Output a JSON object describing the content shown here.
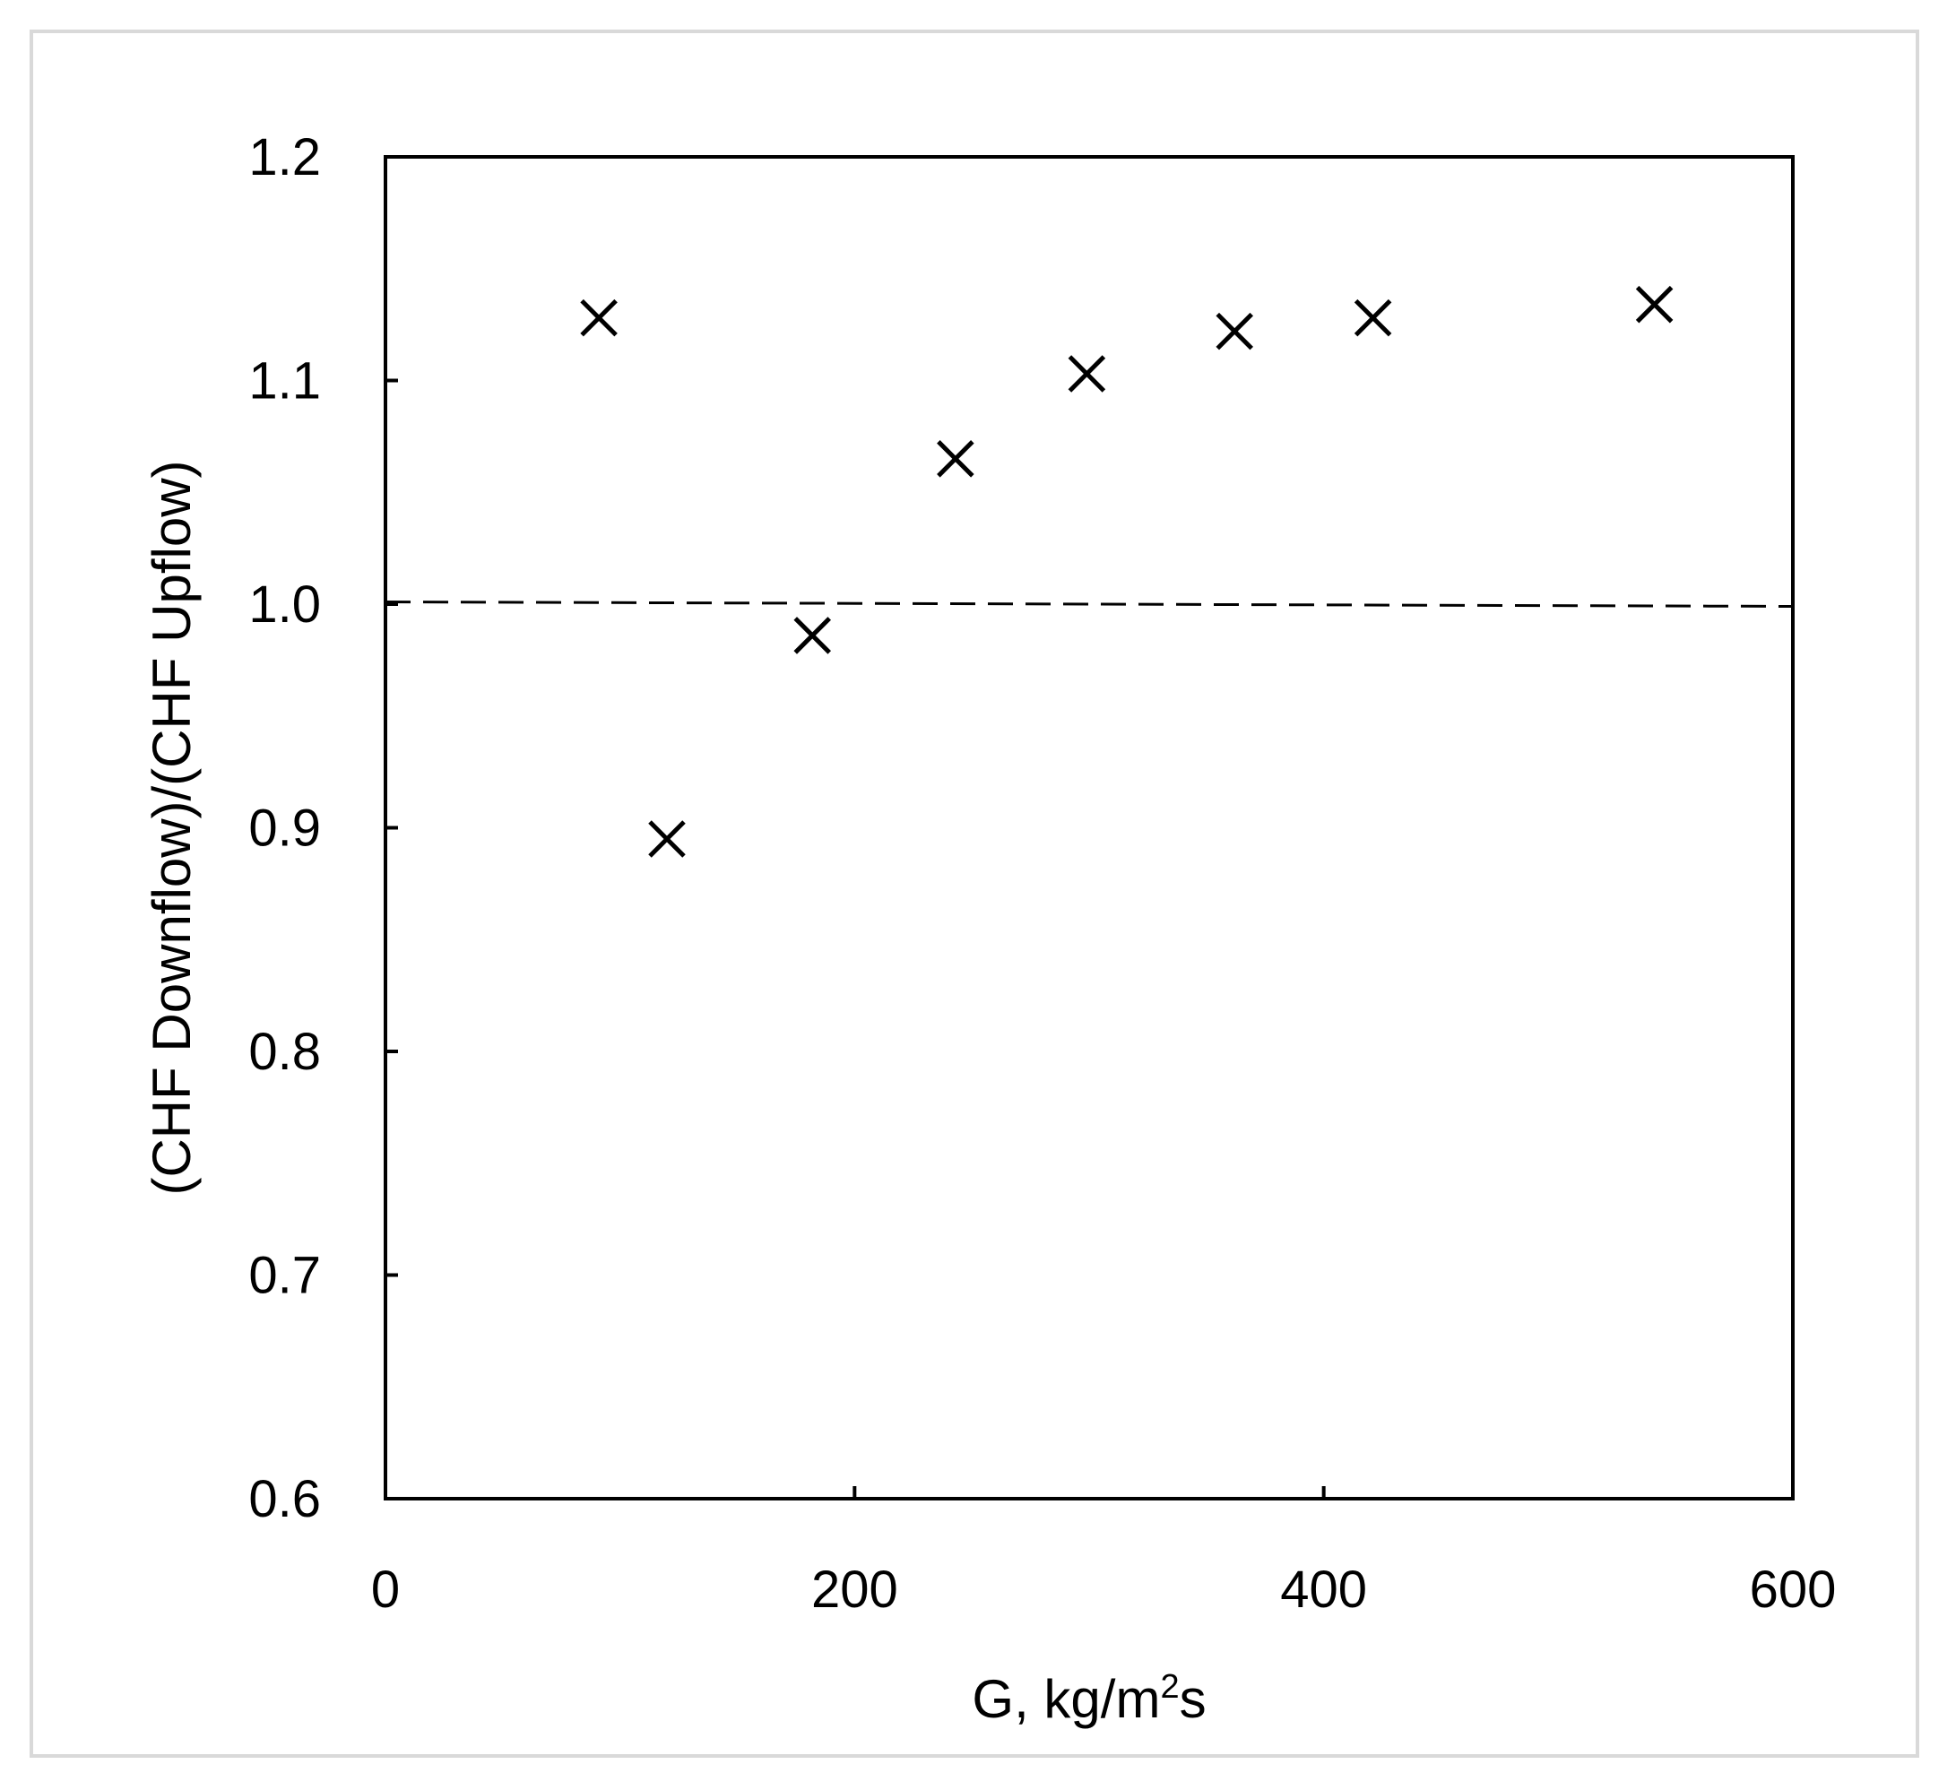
{
  "chart_data": {
    "type": "scatter",
    "title": "",
    "xlabel": "G, kg/m",
    "xlabel_sup": "2",
    "xlabel_tail": "s",
    "ylabel": "(CHF Downflow)/(CHF Upflow)",
    "xlim": [
      0,
      600
    ],
    "ylim": [
      0.6,
      1.2
    ],
    "x_ticks": [
      0,
      200,
      400,
      600
    ],
    "x_tick_labels": [
      "0",
      "200",
      "400",
      "600"
    ],
    "y_ticks": [
      0.6,
      0.7,
      0.8,
      0.9,
      1.0,
      1.1,
      1.2
    ],
    "y_tick_labels": [
      "0.6",
      "0.7",
      "0.8",
      "0.9",
      "1.0",
      "1.1",
      "1.2"
    ],
    "grid": false,
    "marker": "x",
    "marker_color": "#000000",
    "series": [
      {
        "points": [
          {
            "x": 91,
            "y": 1.128
          },
          {
            "x": 120,
            "y": 0.895
          },
          {
            "x": 182,
            "y": 0.986
          },
          {
            "x": 243,
            "y": 1.065
          },
          {
            "x": 299,
            "y": 1.103
          },
          {
            "x": 362,
            "y": 1.122
          },
          {
            "x": 421,
            "y": 1.128
          },
          {
            "x": 541,
            "y": 1.134
          }
        ]
      }
    ],
    "reference_line": {
      "style": "dashed",
      "color": "#000000",
      "y_start": 1.001,
      "y_end": 0.999
    }
  }
}
